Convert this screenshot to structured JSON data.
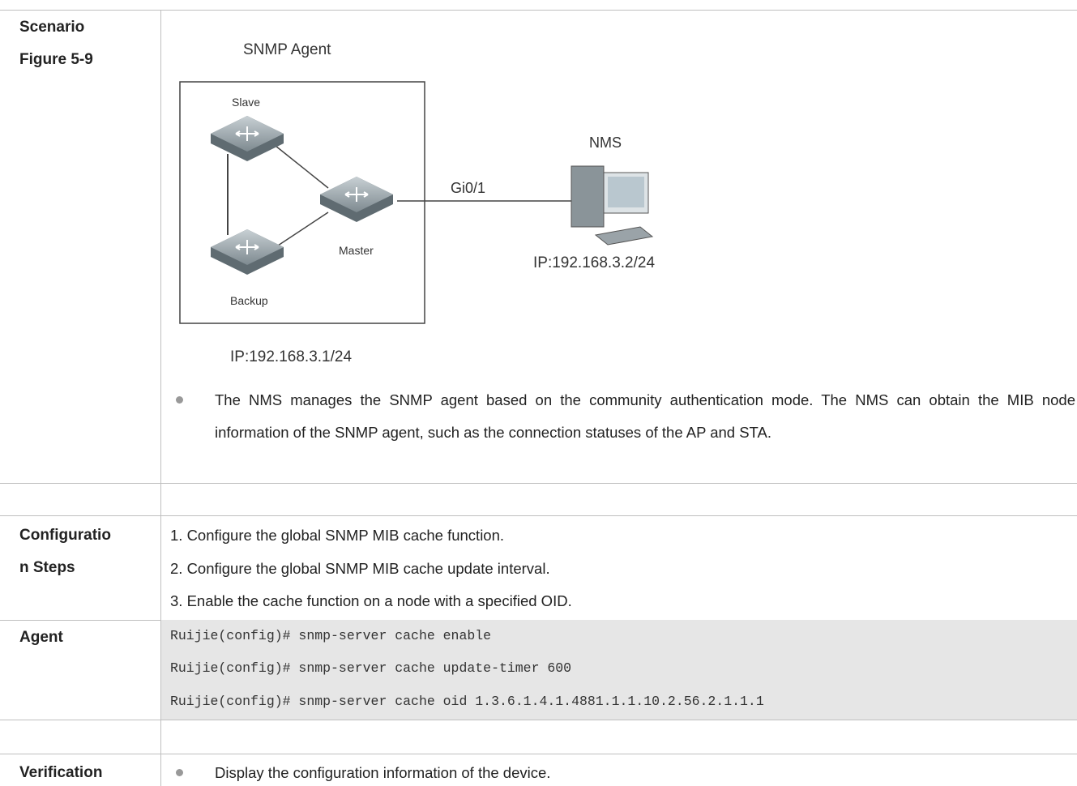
{
  "table": {
    "scenario": {
      "label": [
        "Scenario",
        "Figure 5-9"
      ],
      "figure": {
        "title": "SNMP Agent",
        "nodes": [
          "Slave",
          "Master",
          "Backup"
        ],
        "nms": "NMS",
        "link": "Gi0/1",
        "nms_ip": "IP:192.168.3.2/24",
        "agent_ip": "IP:192.168.3.1/24"
      },
      "bullet": "The NMS manages the SNMP agent based on the community authentication mode. The NMS can obtain the MIB node information of the SNMP agent, such as the connection statuses of the AP and STA."
    },
    "config": {
      "label": [
        "Configuratio",
        "n Steps"
      ],
      "steps": [
        "1. Configure the global SNMP MIB cache function.",
        "2. Configure the global SNMP MIB cache update interval.",
        "3. Enable the cache function on a node with a specified OID."
      ]
    },
    "agent": {
      "label": "Agent",
      "code": [
        "Ruijie(config)# snmp-server cache enable",
        "Ruijie(config)# snmp-server cache update-timer 600",
        "Ruijie(config)# snmp-server cache oid 1.3.6.1.4.1.4881.1.1.10.2.56.2.1.1.1"
      ]
    },
    "verification": {
      "label": "Verification",
      "bullet": "Display the configuration information of the device."
    }
  }
}
